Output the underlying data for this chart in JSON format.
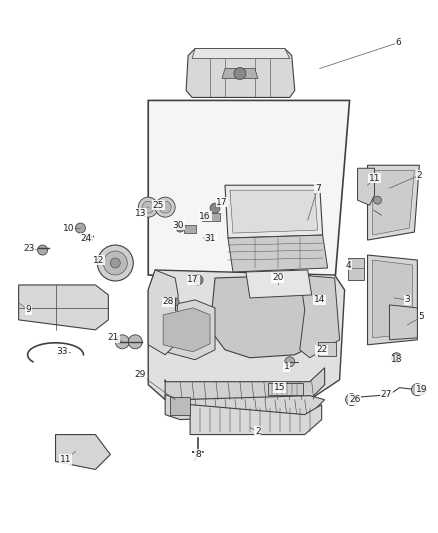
{
  "bg_color": "#ffffff",
  "fig_width": 4.38,
  "fig_height": 5.33,
  "dpi": 100,
  "line_color": "#404040",
  "label_color": "#222222",
  "font_size": 6.5,
  "part_fill": "#e8e8e8",
  "part_edge": "#404040",
  "dark_fill": "#c0c0c0",
  "labels": [
    [
      "6",
      399,
      42
    ],
    [
      "2",
      420,
      175
    ],
    [
      "11",
      375,
      178
    ],
    [
      "7",
      318,
      188
    ],
    [
      "17",
      207,
      202
    ],
    [
      "16",
      200,
      216
    ],
    [
      "30",
      175,
      225
    ],
    [
      "31",
      208,
      238
    ],
    [
      "25",
      155,
      205
    ],
    [
      "13",
      137,
      213
    ],
    [
      "10",
      68,
      228
    ],
    [
      "24",
      83,
      238
    ],
    [
      "23",
      28,
      248
    ],
    [
      "12",
      95,
      258
    ],
    [
      "9",
      28,
      310
    ],
    [
      "17",
      192,
      278
    ],
    [
      "28",
      167,
      300
    ],
    [
      "20",
      280,
      275
    ],
    [
      "14",
      318,
      298
    ],
    [
      "4",
      347,
      264
    ],
    [
      "3",
      408,
      300
    ],
    [
      "5",
      420,
      315
    ],
    [
      "21",
      110,
      338
    ],
    [
      "33",
      62,
      352
    ],
    [
      "22",
      320,
      348
    ],
    [
      "1",
      285,
      365
    ],
    [
      "29",
      138,
      372
    ],
    [
      "18",
      395,
      358
    ],
    [
      "15",
      280,
      385
    ],
    [
      "19",
      420,
      388
    ],
    [
      "26",
      352,
      398
    ],
    [
      "27",
      385,
      393
    ],
    [
      "2",
      255,
      430
    ],
    [
      "8",
      195,
      453
    ],
    [
      "11",
      65,
      458
    ]
  ]
}
